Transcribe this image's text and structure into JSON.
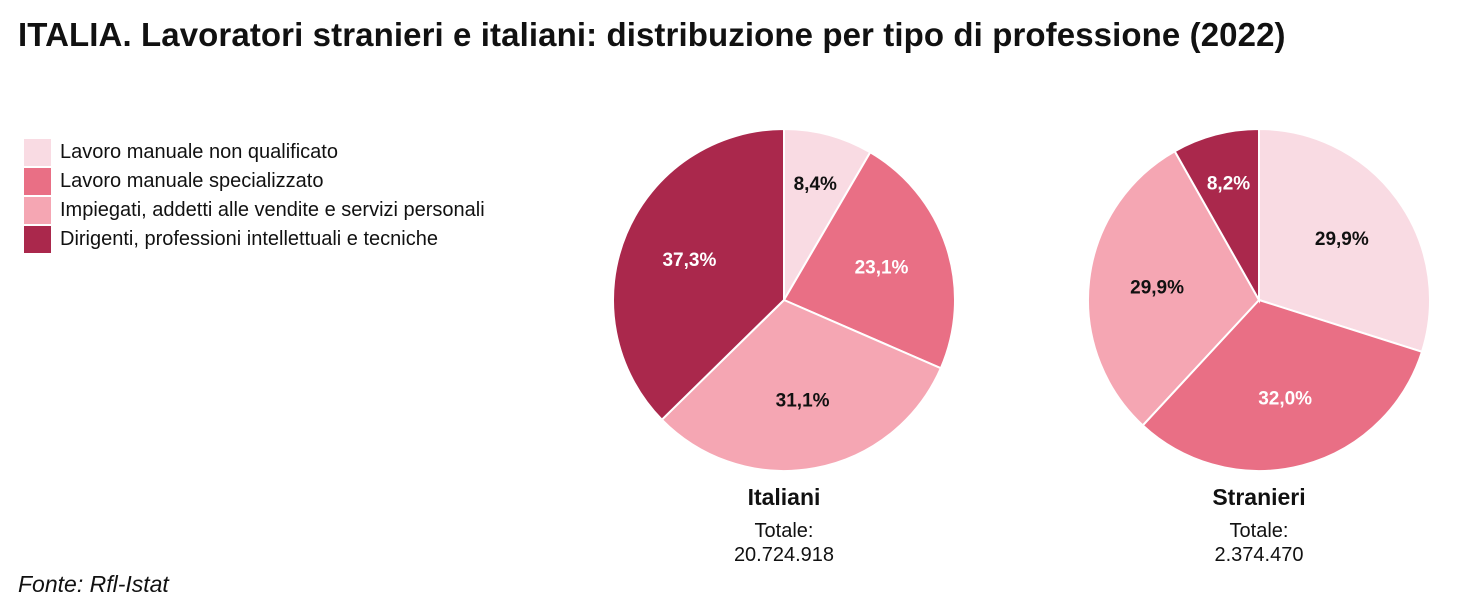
{
  "title": "ITALIA. Lavoratori stranieri e italiani: distribuzione per tipo di professione (2022)",
  "source": "Fonte: Rfl-Istat",
  "colors": {
    "non_qualificato": "#f9dbe3",
    "specializzato": "#e96f85",
    "impiegati": "#f5a6b3",
    "dirigenti": "#aa284c"
  },
  "legend": [
    {
      "label": "Lavoro manuale non qualificato",
      "color": "#f9dbe3"
    },
    {
      "label": "Lavoro manuale specializzato",
      "color": "#e96f85"
    },
    {
      "label": "Impiegati, addetti alle vendite e servizi personali",
      "color": "#f5a6b3"
    },
    {
      "label": "Dirigenti, professioni intellettuali e tecniche",
      "color": "#aa284c"
    }
  ],
  "chart_data": [
    {
      "type": "pie",
      "name": "Italiani",
      "total_label": "Totale:",
      "total_value": "20.724.918",
      "categories": [
        "Lavoro manuale non qualificato",
        "Lavoro manuale specializzato",
        "Impiegati, addetti alle vendite e servizi personali",
        "Dirigenti, professioni intellettuali e tecniche"
      ],
      "values": [
        8.4,
        23.1,
        31.1,
        37.3
      ],
      "labels": [
        "8,4%",
        "23,1%",
        "31,1%",
        "37,3%"
      ],
      "legend_position": "left"
    },
    {
      "type": "pie",
      "name": "Stranieri",
      "total_label": "Totale:",
      "total_value": "2.374.470",
      "categories": [
        "Lavoro manuale non qualificato",
        "Lavoro manuale specializzato",
        "Impiegati, addetti alle vendite e servizi personali",
        "Dirigenti, professioni intellettuali e tecniche"
      ],
      "values": [
        29.9,
        32.0,
        29.9,
        8.2
      ],
      "labels": [
        "29,9%",
        "32,0%",
        "29,9%",
        "8,2%"
      ],
      "legend_position": "left"
    }
  ]
}
